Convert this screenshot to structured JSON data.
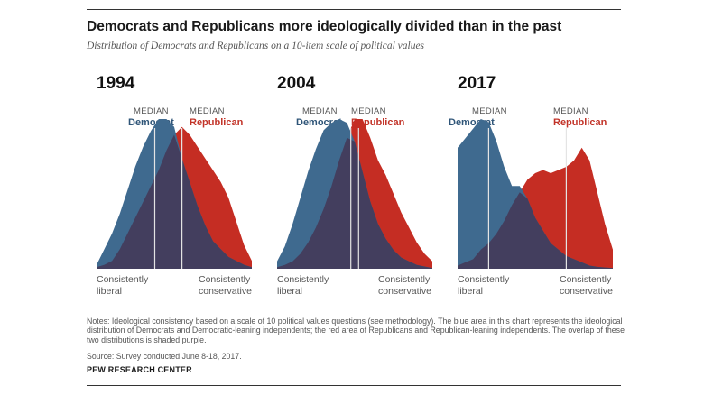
{
  "title": "Democrats and Republicans more ideologically divided than in the past",
  "subtitle": "Distribution of Democrats and Republicans on a 10-item scale of political values",
  "median_caption": "MEDIAN",
  "dem_label": "Democrat",
  "rep_label": "Republican",
  "left_label": [
    "Consistently",
    "liberal"
  ],
  "right_label": [
    "Consistently",
    "conservative"
  ],
  "notes": "Notes: Ideological consistency based on a scale of 10 political values questions (see methodology). The blue area in this chart represents the ideological distribution of Democrats and Democratic-leaning independents; the red area of Republicans and Republican-leaning independents. The overlap of these two distributions is shaded purple.",
  "source": "Source: Survey conducted June 8-18, 2017.",
  "org": "PEW RESEARCH CENTER",
  "colors": {
    "democrat": "#3f6a8f",
    "republican": "#c52d23",
    "overlap": "#433e5e",
    "median_line": "#e4e4e4"
  },
  "chart_data": [
    {
      "type": "area",
      "year": "1994",
      "x": [
        -10,
        -9,
        -8,
        -7,
        -6,
        -5,
        -4,
        -3,
        -2,
        -1,
        0,
        1,
        2,
        3,
        4,
        5,
        6,
        7,
        8,
        9,
        10
      ],
      "series": [
        {
          "name": "Democrat",
          "values": [
            0.5,
            2.5,
            4.5,
            7,
            10,
            13,
            15.5,
            17.5,
            19,
            19,
            18,
            14,
            11,
            8,
            5.5,
            3.5,
            2.5,
            1.5,
            1,
            0.5,
            0.2
          ]
        },
        {
          "name": "Republican",
          "values": [
            0.2,
            0.5,
            1,
            2.5,
            4.5,
            6.5,
            8.5,
            10.5,
            12.5,
            15,
            17,
            18,
            17,
            15.5,
            14,
            12.5,
            11,
            9,
            6,
            3,
            1
          ]
        }
      ],
      "medians": {
        "Democrat": -2.5,
        "Republican": 1.0
      }
    },
    {
      "type": "area",
      "year": "2004",
      "x": [
        -10,
        -9,
        -8,
        -7,
        -6,
        -5,
        -4,
        -3,
        -2,
        -1,
        0,
        1,
        2,
        3,
        4,
        5,
        6,
        7,
        8,
        9,
        10
      ],
      "series": [
        {
          "name": "Democrat",
          "values": [
            1,
            3,
            6,
            9.5,
            13,
            16,
            18.5,
            19.5,
            20,
            19.5,
            17,
            13,
            9,
            6,
            4,
            2.5,
            1.5,
            1,
            0.5,
            0.3,
            0.1
          ]
        },
        {
          "name": "Republican",
          "values": [
            0.2,
            0.5,
            1,
            2,
            3.5,
            5.5,
            8,
            11,
            14.5,
            17.5,
            20,
            20,
            17.5,
            14.5,
            12.5,
            10,
            7.5,
            5.5,
            3.5,
            2,
            1
          ]
        }
      ],
      "medians": {
        "Democrat": -0.5,
        "Republican": 0.5
      }
    },
    {
      "type": "area",
      "year": "2017",
      "x": [
        -10,
        -9,
        -8,
        -7,
        -6,
        -5,
        -4,
        -3,
        -2,
        -1,
        0,
        1,
        2,
        3,
        4,
        5,
        6,
        7,
        8,
        9,
        10
      ],
      "series": [
        {
          "name": "Democrat",
          "values": [
            19,
            20.5,
            22,
            23.5,
            23,
            20,
            16,
            13,
            13,
            11,
            8,
            6,
            4,
            3,
            2,
            1.5,
            1,
            0.5,
            0.3,
            0.2,
            0.1
          ]
        },
        {
          "name": "Republican",
          "values": [
            0.5,
            1,
            1.5,
            3,
            4,
            5.5,
            7.5,
            10,
            12,
            14,
            15,
            15.5,
            15,
            15.5,
            16,
            17,
            19,
            17,
            12,
            7,
            3
          ]
        }
      ],
      "medians": {
        "Democrat": -6.0,
        "Republican": 4.0
      }
    }
  ]
}
